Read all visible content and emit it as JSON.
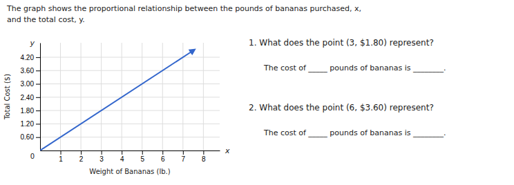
{
  "chart_data": {
    "type": "line",
    "title": "The graph shows the proportional relationship between the pounds of bananas purchased, x,",
    "subtitle": "and the total cost, y.",
    "xlabel": "Weight of Bananas (lb.)",
    "ylabel": "Total Cost ($)",
    "x": [
      0,
      7.5
    ],
    "values": [
      0,
      4.5
    ],
    "color": "#3366cc",
    "xlim": [
      0,
      8.8
    ],
    "ylim": [
      0,
      4.85
    ],
    "xticks": [
      1,
      2,
      3,
      4,
      5,
      6,
      7,
      8
    ],
    "yticks": [
      {
        "value": 0.6,
        "label": "0.60"
      },
      {
        "value": 1.2,
        "label": "1.20"
      },
      {
        "value": 1.8,
        "label": "1.80"
      },
      {
        "value": 2.4,
        "label": "2.40"
      },
      {
        "value": 3.0,
        "label": "3.00"
      },
      {
        "value": 3.6,
        "label": "3.60"
      },
      {
        "value": 4.2,
        "label": "4.20"
      }
    ],
    "grid": true,
    "annotations": [
      "0",
      "y",
      "x",
      "1. What does the point (3, $1.80) represent?",
      "The cost of _____ pounds of bananas is ________.",
      "2. What does the point (6, $3.60) represent?",
      "The cost of _____ pounds of bananas is ________."
    ]
  }
}
